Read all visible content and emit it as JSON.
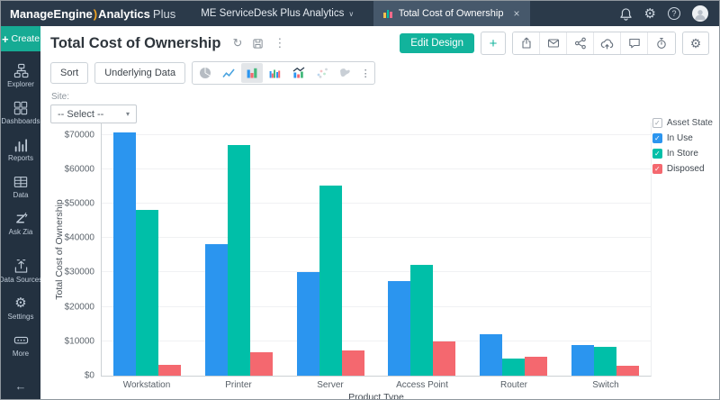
{
  "topbar": {
    "brand": {
      "part1": "ManageEngine",
      "part2": "Analytics",
      "part3": "Plus"
    },
    "workspace": "ME ServiceDesk Plus Analytics",
    "tab": {
      "label": "Total Cost of Ownership",
      "close": "×",
      "icon": "bar-chart-mini-icon"
    },
    "right_icons": [
      "notifications-icon",
      "settings-icon",
      "help-icon",
      "avatar"
    ]
  },
  "sidebar": {
    "create_label": "Create",
    "create_plus": "+",
    "items": [
      {
        "label": "Explorer",
        "icon": "explorer-icon"
      },
      {
        "label": "Dashboards",
        "icon": "dashboards-icon"
      },
      {
        "label": "Reports",
        "icon": "reports-icon"
      },
      {
        "label": "Data",
        "icon": "data-icon"
      },
      {
        "label": "Ask Zia",
        "icon": "ask-zia-icon"
      },
      {
        "label": "Data Sources",
        "icon": "data-sources-icon"
      },
      {
        "label": "Settings",
        "icon": "settings-icon"
      },
      {
        "label": "More",
        "icon": "more-icon"
      }
    ],
    "collapse_icon": "collapse-sidebar-icon"
  },
  "header": {
    "title": "Total Cost of Ownership",
    "title_icons": [
      "refresh-icon",
      "save-icon",
      "kebab-menu-icon"
    ],
    "edit_design_label": "Edit Design",
    "add_label": "+",
    "action_icons": [
      "export-icon",
      "email-icon",
      "share-icon",
      "cloud-upload-icon",
      "comment-icon",
      "schedule-icon"
    ],
    "settings_icon": "settings-icon"
  },
  "toolbar": {
    "sort_label": "Sort",
    "underlying_data_label": "Underlying Data",
    "chart_types": [
      {
        "icon": "pie-chart-icon",
        "selected": false
      },
      {
        "icon": "line-chart-icon",
        "selected": false
      },
      {
        "icon": "bar-chart-icon",
        "selected": true
      },
      {
        "icon": "grouped-bar-chart-icon",
        "selected": false
      },
      {
        "icon": "combo-chart-icon",
        "selected": false
      },
      {
        "icon": "scatter-chart-icon",
        "selected": false
      },
      {
        "icon": "map-chart-icon",
        "selected": false
      }
    ],
    "more_label": "⋮"
  },
  "filter": {
    "label": "Site:",
    "value": "-- Select --"
  },
  "chart_data": {
    "type": "bar",
    "title": "Total Cost of Ownership",
    "xlabel": "Product Type",
    "ylabel": "Total Cost of Ownership",
    "categories": [
      "Workstation",
      "Printer",
      "Server",
      "Access Point",
      "Router",
      "Switch"
    ],
    "series": [
      {
        "name": "In Use",
        "color": "#2b95ef",
        "values": [
          70800,
          38300,
          30000,
          27500,
          12000,
          8900
        ]
      },
      {
        "name": "In Store",
        "color": "#00bfa8",
        "values": [
          48300,
          67000,
          55300,
          32200,
          4900,
          8500
        ]
      },
      {
        "name": "Disposed",
        "color": "#f4686f",
        "values": [
          3200,
          6800,
          7300,
          10000,
          5400,
          3000
        ]
      }
    ],
    "legend_title": "Asset State",
    "legend_position": "right",
    "grid": true,
    "ylim": [
      0,
      73600
    ],
    "y_ticks": [
      {
        "value": 0,
        "label": "$0"
      },
      {
        "value": 10000,
        "label": "$10000"
      },
      {
        "value": 20000,
        "label": "$20000"
      },
      {
        "value": 30000,
        "label": "$30000"
      },
      {
        "value": 40000,
        "label": "$40000"
      },
      {
        "value": 50000,
        "label": "$50000"
      },
      {
        "value": 60000,
        "label": "$60000"
      },
      {
        "value": 70000,
        "label": "$70000"
      }
    ]
  },
  "colors": {
    "topbar_bg": "#2b3a4a",
    "tab_bg": "#46586b",
    "sidebar_bg": "#233140",
    "accent_teal": "#12b39c",
    "bar_blue": "#2b95ef",
    "bar_teal": "#00bfa8",
    "bar_red": "#f4686f"
  }
}
